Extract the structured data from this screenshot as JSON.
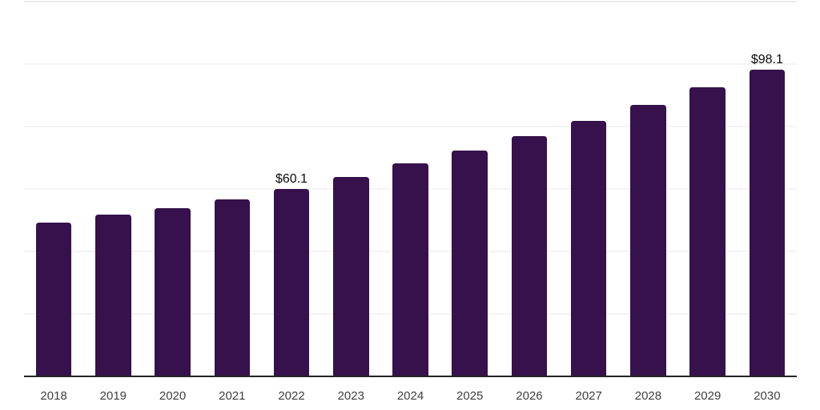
{
  "chart_data": {
    "type": "bar",
    "title": "",
    "xlabel": "",
    "ylabel": "",
    "categories": [
      "2018",
      "2019",
      "2020",
      "2021",
      "2022",
      "2023",
      "2024",
      "2025",
      "2026",
      "2027",
      "2028",
      "2029",
      "2030"
    ],
    "values": [
      49.2,
      51.9,
      53.8,
      56.7,
      60.1,
      63.8,
      68.1,
      72.4,
      76.9,
      81.8,
      86.9,
      92.5,
      98.1
    ],
    "data_labels": {
      "2022": "$60.1",
      "2030": "$98.1"
    },
    "ylim": [
      0,
      120
    ],
    "gridline_step": 20,
    "grid": "horizontal",
    "legend": "none",
    "colors": {
      "bar": "#36114C",
      "axis_line": "#242424",
      "gridline": "#f4f4f6",
      "top_gridline": "#ededf0",
      "tick_label": "#3f3f3f",
      "data_label": "#0a0a0a",
      "background": "#ffffff"
    }
  }
}
